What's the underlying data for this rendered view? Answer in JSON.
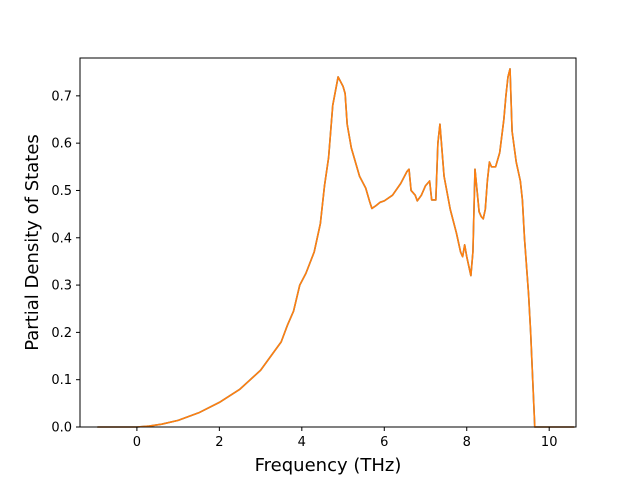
{
  "chart_data": {
    "type": "line",
    "title": "",
    "xlabel": "Frequency (THz)",
    "ylabel": "Partial Density of States",
    "xlim": [
      -1.38,
      10.65
    ],
    "ylim": [
      0.0,
      0.78
    ],
    "x_ticks": [
      0,
      2,
      4,
      6,
      8,
      10
    ],
    "x_tick_labels": [
      "0",
      "2",
      "4",
      "6",
      "8",
      "10"
    ],
    "y_ticks": [
      0.0,
      0.1,
      0.2,
      0.3,
      0.4,
      0.5,
      0.6,
      0.7
    ],
    "y_tick_labels": [
      "0.0",
      "0.1",
      "0.2",
      "0.3",
      "0.4",
      "0.5",
      "0.6",
      "0.7"
    ],
    "grid": false,
    "legend": "none",
    "series": [
      {
        "color": "#1f77b4",
        "points": [
          [
            -0.95,
            0
          ],
          [
            0,
            0
          ],
          [
            0.3,
            0.002
          ],
          [
            0.6,
            0.006
          ],
          [
            1.0,
            0.014
          ],
          [
            1.5,
            0.03
          ],
          [
            2.0,
            0.052
          ],
          [
            2.5,
            0.08
          ],
          [
            3.0,
            0.12
          ],
          [
            3.5,
            0.18
          ],
          [
            3.65,
            0.215
          ],
          [
            3.8,
            0.245
          ],
          [
            3.95,
            0.3
          ],
          [
            4.1,
            0.325
          ],
          [
            4.3,
            0.37
          ],
          [
            4.45,
            0.43
          ],
          [
            4.55,
            0.51
          ],
          [
            4.65,
            0.57
          ],
          [
            4.75,
            0.68
          ],
          [
            4.88,
            0.74
          ],
          [
            5.0,
            0.72
          ],
          [
            5.05,
            0.705
          ],
          [
            5.1,
            0.64
          ],
          [
            5.2,
            0.59
          ],
          [
            5.4,
            0.53
          ],
          [
            5.55,
            0.505
          ],
          [
            5.65,
            0.475
          ],
          [
            5.7,
            0.462
          ],
          [
            5.8,
            0.468
          ],
          [
            5.9,
            0.475
          ],
          [
            6.0,
            0.478
          ],
          [
            6.2,
            0.49
          ],
          [
            6.4,
            0.515
          ],
          [
            6.55,
            0.54
          ],
          [
            6.6,
            0.545
          ],
          [
            6.65,
            0.5
          ],
          [
            6.75,
            0.49
          ],
          [
            6.8,
            0.478
          ],
          [
            6.9,
            0.49
          ],
          [
            7.0,
            0.51
          ],
          [
            7.1,
            0.52
          ],
          [
            7.15,
            0.48
          ],
          [
            7.25,
            0.48
          ],
          [
            7.3,
            0.6
          ],
          [
            7.35,
            0.64
          ],
          [
            7.45,
            0.53
          ],
          [
            7.6,
            0.46
          ],
          [
            7.75,
            0.41
          ],
          [
            7.85,
            0.37
          ],
          [
            7.9,
            0.36
          ],
          [
            7.95,
            0.385
          ],
          [
            8.0,
            0.36
          ],
          [
            8.1,
            0.32
          ],
          [
            8.15,
            0.37
          ],
          [
            8.2,
            0.545
          ],
          [
            8.25,
            0.5
          ],
          [
            8.3,
            0.455
          ],
          [
            8.35,
            0.445
          ],
          [
            8.4,
            0.44
          ],
          [
            8.45,
            0.46
          ],
          [
            8.5,
            0.52
          ],
          [
            8.55,
            0.56
          ],
          [
            8.6,
            0.55
          ],
          [
            8.7,
            0.55
          ],
          [
            8.8,
            0.58
          ],
          [
            8.9,
            0.65
          ],
          [
            8.95,
            0.7
          ],
          [
            9.0,
            0.74
          ],
          [
            9.05,
            0.757
          ],
          [
            9.1,
            0.625
          ],
          [
            9.2,
            0.56
          ],
          [
            9.3,
            0.52
          ],
          [
            9.35,
            0.48
          ],
          [
            9.4,
            0.4
          ],
          [
            9.5,
            0.28
          ],
          [
            9.55,
            0.2
          ],
          [
            9.6,
            0.1
          ],
          [
            9.65,
            0
          ],
          [
            10.0,
            0
          ],
          [
            10.6,
            0
          ]
        ]
      },
      {
        "color": "#ff7f0e",
        "points": [
          [
            -0.95,
            0
          ],
          [
            0,
            0
          ],
          [
            0.3,
            0.002
          ],
          [
            0.6,
            0.006
          ],
          [
            1.0,
            0.014
          ],
          [
            1.5,
            0.03
          ],
          [
            2.0,
            0.052
          ],
          [
            2.5,
            0.08
          ],
          [
            3.0,
            0.12
          ],
          [
            3.5,
            0.18
          ],
          [
            3.65,
            0.215
          ],
          [
            3.8,
            0.245
          ],
          [
            3.95,
            0.3
          ],
          [
            4.1,
            0.325
          ],
          [
            4.3,
            0.37
          ],
          [
            4.45,
            0.43
          ],
          [
            4.55,
            0.51
          ],
          [
            4.65,
            0.57
          ],
          [
            4.75,
            0.68
          ],
          [
            4.88,
            0.74
          ],
          [
            5.0,
            0.72
          ],
          [
            5.05,
            0.705
          ],
          [
            5.1,
            0.64
          ],
          [
            5.2,
            0.59
          ],
          [
            5.4,
            0.53
          ],
          [
            5.55,
            0.505
          ],
          [
            5.65,
            0.475
          ],
          [
            5.7,
            0.462
          ],
          [
            5.8,
            0.468
          ],
          [
            5.9,
            0.475
          ],
          [
            6.0,
            0.478
          ],
          [
            6.2,
            0.49
          ],
          [
            6.4,
            0.515
          ],
          [
            6.55,
            0.54
          ],
          [
            6.6,
            0.545
          ],
          [
            6.65,
            0.5
          ],
          [
            6.75,
            0.49
          ],
          [
            6.8,
            0.478
          ],
          [
            6.9,
            0.49
          ],
          [
            7.0,
            0.51
          ],
          [
            7.1,
            0.52
          ],
          [
            7.15,
            0.48
          ],
          [
            7.25,
            0.48
          ],
          [
            7.3,
            0.6
          ],
          [
            7.35,
            0.64
          ],
          [
            7.45,
            0.53
          ],
          [
            7.6,
            0.46
          ],
          [
            7.75,
            0.41
          ],
          [
            7.85,
            0.37
          ],
          [
            7.9,
            0.36
          ],
          [
            7.95,
            0.385
          ],
          [
            8.0,
            0.36
          ],
          [
            8.1,
            0.32
          ],
          [
            8.15,
            0.37
          ],
          [
            8.2,
            0.545
          ],
          [
            8.25,
            0.5
          ],
          [
            8.3,
            0.455
          ],
          [
            8.35,
            0.445
          ],
          [
            8.4,
            0.44
          ],
          [
            8.45,
            0.46
          ],
          [
            8.5,
            0.52
          ],
          [
            8.55,
            0.56
          ],
          [
            8.6,
            0.55
          ],
          [
            8.7,
            0.55
          ],
          [
            8.8,
            0.58
          ],
          [
            8.9,
            0.65
          ],
          [
            8.95,
            0.7
          ],
          [
            9.0,
            0.74
          ],
          [
            9.05,
            0.757
          ],
          [
            9.1,
            0.625
          ],
          [
            9.2,
            0.56
          ],
          [
            9.3,
            0.52
          ],
          [
            9.35,
            0.48
          ],
          [
            9.4,
            0.4
          ],
          [
            9.5,
            0.28
          ],
          [
            9.55,
            0.2
          ],
          [
            9.6,
            0.1
          ],
          [
            9.65,
            0
          ],
          [
            10.0,
            0
          ],
          [
            10.6,
            0
          ]
        ]
      }
    ]
  }
}
